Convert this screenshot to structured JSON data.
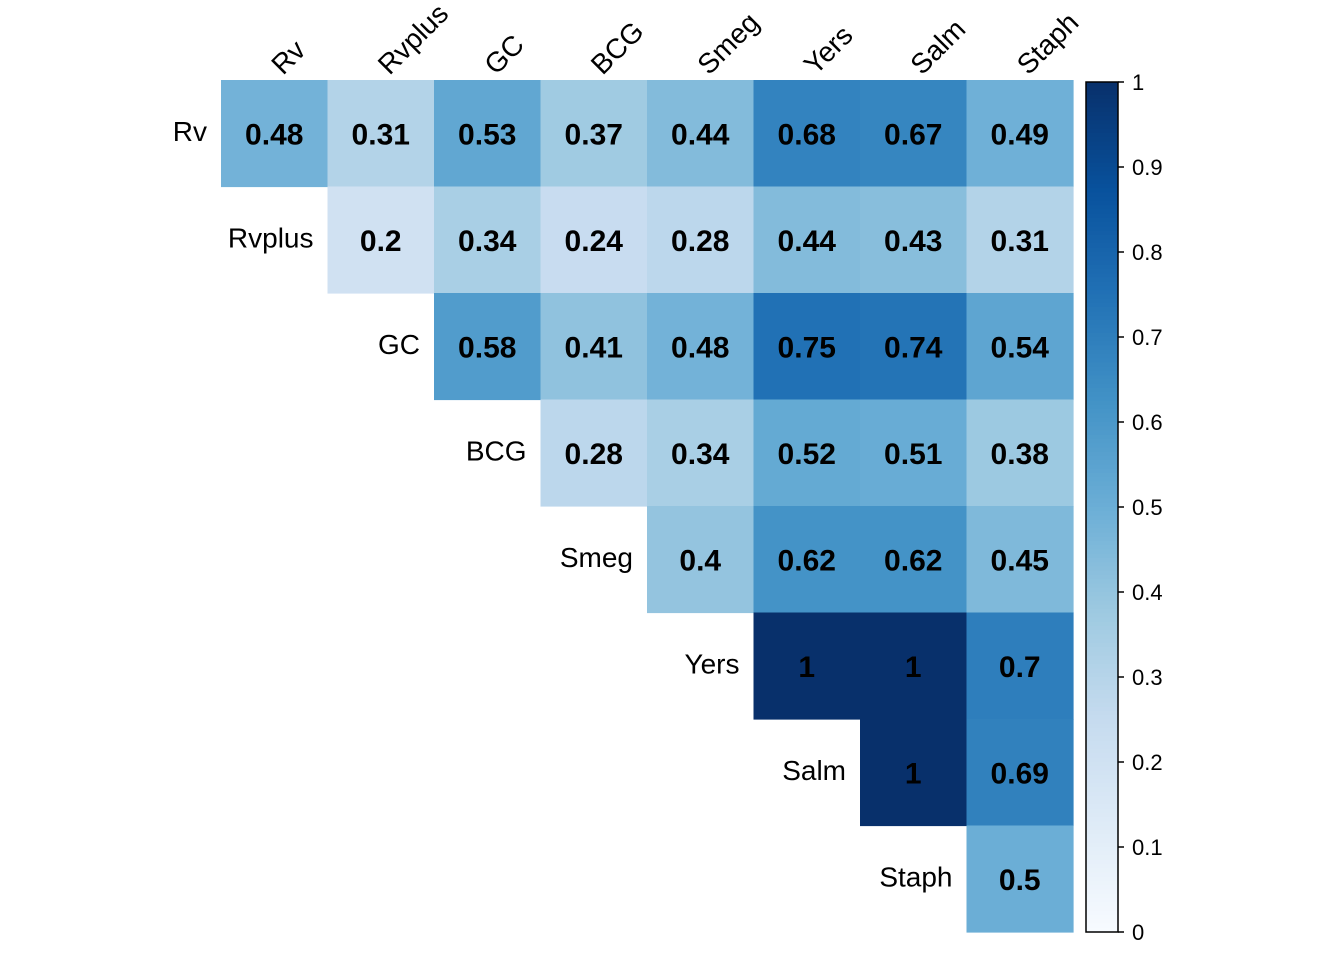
{
  "chart_data": {
    "type": "heatmap",
    "variables": [
      "Rv",
      "Rvplus",
      "GC",
      "BCG",
      "Smeg",
      "Yers",
      "Salm",
      "Staph"
    ],
    "shape": "upper-triangle",
    "matrix": [
      [
        0.48,
        0.31,
        0.53,
        0.37,
        0.44,
        0.68,
        0.67,
        0.49
      ],
      [
        null,
        0.2,
        0.34,
        0.24,
        0.28,
        0.44,
        0.43,
        0.31
      ],
      [
        null,
        null,
        0.58,
        0.41,
        0.48,
        0.75,
        0.74,
        0.54
      ],
      [
        null,
        null,
        null,
        0.28,
        0.34,
        0.52,
        0.51,
        0.38
      ],
      [
        null,
        null,
        null,
        null,
        0.4,
        0.62,
        0.62,
        0.45
      ],
      [
        null,
        null,
        null,
        null,
        null,
        1,
        1,
        0.7
      ],
      [
        null,
        null,
        null,
        null,
        null,
        null,
        1,
        0.69
      ],
      [
        null,
        null,
        null,
        null,
        null,
        null,
        null,
        0.5
      ]
    ],
    "color_scale": {
      "range": [
        0,
        1
      ],
      "colors": [
        "#F7FBFF",
        "#DEEBF7",
        "#C6DBEF",
        "#9ECAE1",
        "#6BAED6",
        "#4292C6",
        "#2171B5",
        "#08519C",
        "#08306B"
      ],
      "ticks": [
        0,
        0.1,
        0.2,
        0.3,
        0.4,
        0.5,
        0.6,
        0.7,
        0.8,
        0.9,
        1
      ],
      "tick_labels": [
        "0",
        "0.1",
        "0.2",
        "0.3",
        "0.4",
        "0.5",
        "0.6",
        "0.7",
        "0.8",
        "0.9",
        "1"
      ]
    },
    "legend": "right",
    "grid": false
  }
}
